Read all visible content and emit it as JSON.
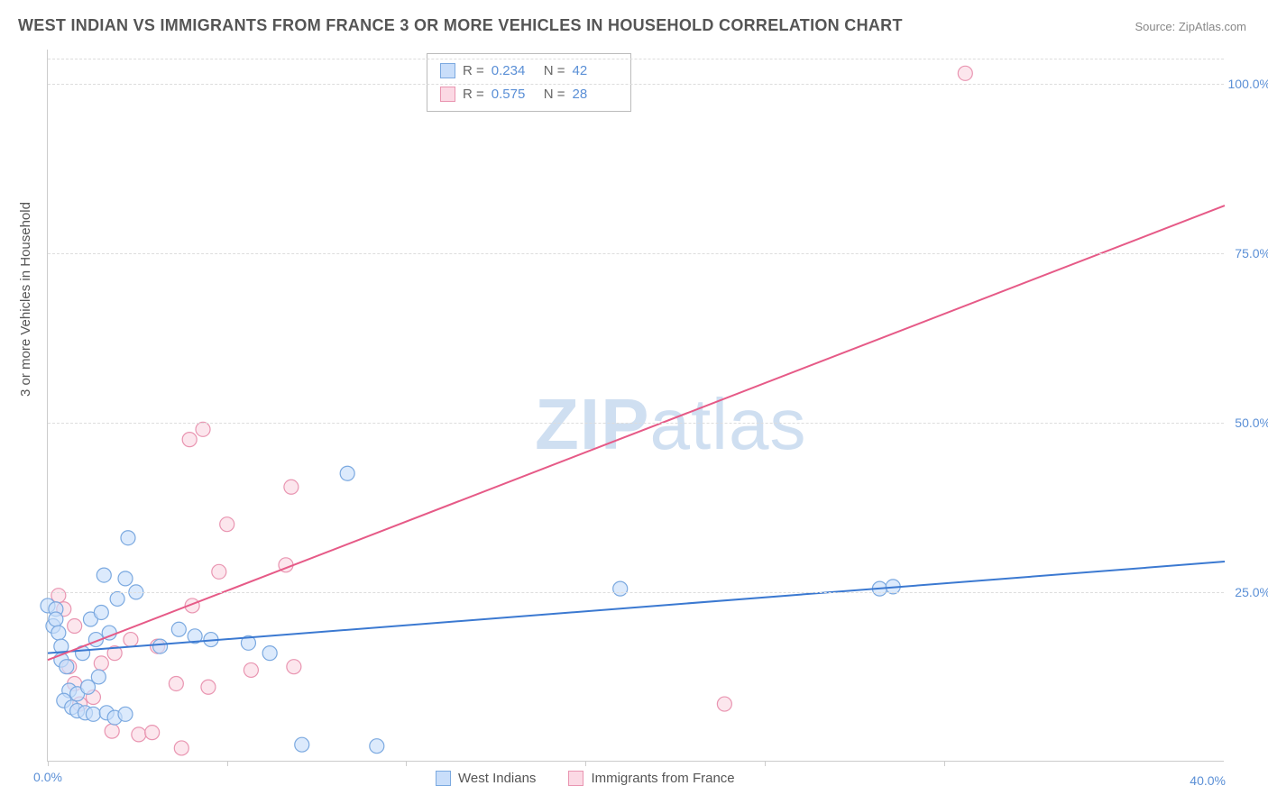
{
  "title": "WEST INDIAN VS IMMIGRANTS FROM FRANCE 3 OR MORE VEHICLES IN HOUSEHOLD CORRELATION CHART",
  "source": "Source: ZipAtlas.com",
  "y_axis_label": "3 or more Vehicles in Household",
  "watermark_bold": "ZIP",
  "watermark_light": "atlas",
  "chart": {
    "type": "scatter",
    "background_color": "#ffffff",
    "grid_color": "#dddddd",
    "axis_color": "#cccccc",
    "tick_color": "#5a8fd6",
    "xlim": [
      0,
      44
    ],
    "ylim": [
      0,
      105
    ],
    "yticks": [
      25,
      50,
      75,
      100
    ],
    "ytick_labels": [
      "25.0%",
      "50.0%",
      "75.0%",
      "100.0%"
    ],
    "xticks": [
      0,
      6.7,
      13.4,
      20.1,
      26.8,
      33.5
    ],
    "xtick_label_0": "0.0%",
    "xtick_label_end": "40.0%"
  },
  "series": {
    "a": {
      "name": "West Indians",
      "color_fill": "#c9defa",
      "color_stroke": "#7ba9e0",
      "line_color": "#3b79d1",
      "marker_radius": 8,
      "R": "0.234",
      "N": "42",
      "regression": {
        "x1": 0,
        "y1": 16,
        "x2": 44,
        "y2": 29.5
      },
      "points": [
        [
          0.0,
          23
        ],
        [
          0.2,
          20
        ],
        [
          0.3,
          22.5
        ],
        [
          0.3,
          21
        ],
        [
          0.4,
          19
        ],
        [
          0.5,
          17
        ],
        [
          0.5,
          15
        ],
        [
          0.7,
          14
        ],
        [
          0.8,
          10.5
        ],
        [
          0.6,
          9
        ],
        [
          0.9,
          8
        ],
        [
          1.1,
          7.5
        ],
        [
          1.4,
          7.2
        ],
        [
          1.7,
          7.0
        ],
        [
          2.2,
          7.2
        ],
        [
          2.5,
          6.5
        ],
        [
          2.9,
          7.0
        ],
        [
          1.1,
          10
        ],
        [
          1.5,
          11
        ],
        [
          1.9,
          12.5
        ],
        [
          1.3,
          16
        ],
        [
          1.8,
          18
        ],
        [
          2.3,
          19
        ],
        [
          1.6,
          21
        ],
        [
          2.0,
          22
        ],
        [
          2.6,
          24
        ],
        [
          2.1,
          27.5
        ],
        [
          2.9,
          27
        ],
        [
          3.3,
          25
        ],
        [
          3.0,
          33
        ],
        [
          4.2,
          17
        ],
        [
          4.9,
          19.5
        ],
        [
          5.5,
          18.5
        ],
        [
          6.1,
          18
        ],
        [
          7.5,
          17.5
        ],
        [
          8.3,
          16
        ],
        [
          9.5,
          2.5
        ],
        [
          12.3,
          2.3
        ],
        [
          11.2,
          42.5
        ],
        [
          21.4,
          25.5
        ],
        [
          31.1,
          25.5
        ],
        [
          31.6,
          25.8
        ]
      ]
    },
    "b": {
      "name": "Immigrants from France",
      "color_fill": "#fbd9e4",
      "color_stroke": "#e995b1",
      "line_color": "#e65a87",
      "marker_radius": 8,
      "R": "0.575",
      "N": "28",
      "regression": {
        "x1": 0,
        "y1": 15,
        "x2": 44,
        "y2": 82
      },
      "points": [
        [
          0.4,
          24.5
        ],
        [
          0.6,
          22.5
        ],
        [
          1.0,
          20
        ],
        [
          0.8,
          14
        ],
        [
          1.0,
          11.5
        ],
        [
          1.2,
          8.5
        ],
        [
          1.7,
          9.5
        ],
        [
          2.4,
          4.5
        ],
        [
          3.4,
          4.0
        ],
        [
          3.9,
          4.3
        ],
        [
          5.0,
          2.0
        ],
        [
          2.0,
          14.5
        ],
        [
          2.5,
          16
        ],
        [
          3.1,
          18
        ],
        [
          4.1,
          17
        ],
        [
          4.8,
          11.5
        ],
        [
          6.0,
          11
        ],
        [
          7.6,
          13.5
        ],
        [
          9.2,
          14
        ],
        [
          5.4,
          23
        ],
        [
          6.4,
          28
        ],
        [
          8.9,
          29
        ],
        [
          6.7,
          35
        ],
        [
          9.1,
          40.5
        ],
        [
          5.3,
          47.5
        ],
        [
          5.8,
          49
        ],
        [
          25.3,
          8.5
        ],
        [
          34.3,
          101.5
        ]
      ]
    }
  },
  "legend_labels": {
    "R": "R =",
    "N": "N ="
  }
}
